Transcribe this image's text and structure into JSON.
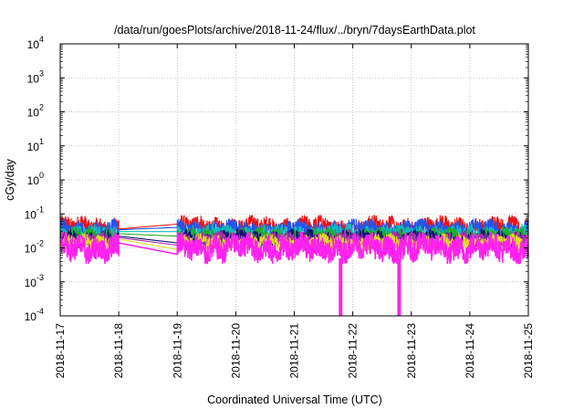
{
  "chart_data": {
    "type": "line",
    "title": "/data/run/goesPlots/archive/2018-11-24/flux/../bryn/7daysEarthData.plot",
    "xlabel": "Coordinated Universal Time (UTC)",
    "ylabel": "cGy/day",
    "yscale": "log",
    "ylim": [
      0.0001,
      10000
    ],
    "xlim": [
      "2018-11-17",
      "2018-11-25"
    ],
    "grid": true,
    "legend": "none",
    "x_ticks": [
      "2018-11-17",
      "2018-11-18",
      "2018-11-19",
      "2018-11-20",
      "2018-11-21",
      "2018-11-22",
      "2018-11-23",
      "2018-11-24",
      "2018-11-25"
    ],
    "y_ticks": [
      {
        "value": 0.0001,
        "base": "10",
        "exp": "-4"
      },
      {
        "value": 0.001,
        "base": "10",
        "exp": "-3"
      },
      {
        "value": 0.01,
        "base": "10",
        "exp": "-2"
      },
      {
        "value": 0.1,
        "base": "10",
        "exp": "-1"
      },
      {
        "value": 1,
        "base": "10",
        "exp": "0"
      },
      {
        "value": 10,
        "base": "10",
        "exp": "1"
      },
      {
        "value": 100,
        "base": "10",
        "exp": "2"
      },
      {
        "value": 1000,
        "base": "10",
        "exp": "3"
      },
      {
        "value": 10000,
        "base": "10",
        "exp": "4"
      }
    ],
    "data_segments": [
      {
        "start": "2018-11-17T00:00",
        "end": "2018-11-18T00:00"
      },
      {
        "start": "2018-11-19T00:00",
        "end": "2018-11-25T00:00"
      }
    ],
    "dropouts": [
      {
        "series": "magenta",
        "time": "2018-11-21T19:00",
        "value": 0.0001
      },
      {
        "series": "magenta",
        "time": "2018-11-22T19:00",
        "value": 0.0001
      }
    ],
    "series": [
      {
        "color": "#ee1111",
        "level_gap_start": 0.036,
        "level_gap_end": 0.05,
        "min": 0.02,
        "max": 0.09
      },
      {
        "color": "#2255ee",
        "level_gap_start": 0.034,
        "level_gap_end": 0.04,
        "min": 0.018,
        "max": 0.07
      },
      {
        "color": "#11bbbb",
        "level_gap_start": 0.03,
        "level_gap_end": 0.03,
        "min": 0.015,
        "max": 0.05
      },
      {
        "color": "#22aa22",
        "level_gap_start": 0.026,
        "level_gap_end": 0.022,
        "min": 0.012,
        "max": 0.04
      },
      {
        "color": "#111177",
        "level_gap_start": 0.022,
        "level_gap_end": 0.014,
        "min": 0.01,
        "max": 0.035
      },
      {
        "color": "#aa33aa",
        "level_gap_start": 0.02,
        "level_gap_end": 0.012,
        "min": 0.009,
        "max": 0.03
      },
      {
        "color": "#dddd22",
        "level_gap_start": 0.018,
        "level_gap_end": 0.009,
        "min": 0.008,
        "max": 0.026
      },
      {
        "color": "#ff22ee",
        "level_gap_start": 0.014,
        "level_gap_end": 0.0065,
        "min": 0.0035,
        "max": 0.028
      }
    ]
  }
}
